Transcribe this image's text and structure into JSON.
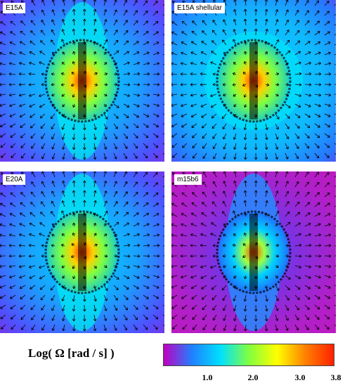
{
  "panels": [
    {
      "label": "E15A",
      "field": "mid"
    },
    {
      "label": "E15A shellular",
      "field": "outer"
    },
    {
      "label": "E20A",
      "field": "mid"
    },
    {
      "label": "m15b6",
      "field": "low"
    }
  ],
  "colorbar": {
    "label": "Log( Ω [rad / s] )",
    "tick_labels": [
      "1.0",
      "2.0",
      "3.0",
      "3.8"
    ],
    "colors": [
      "#c000c0",
      "#2080ff",
      "#00e0ff",
      "#80ff40",
      "#ffff00",
      "#ff8000",
      "#ff2000"
    ]
  }
}
